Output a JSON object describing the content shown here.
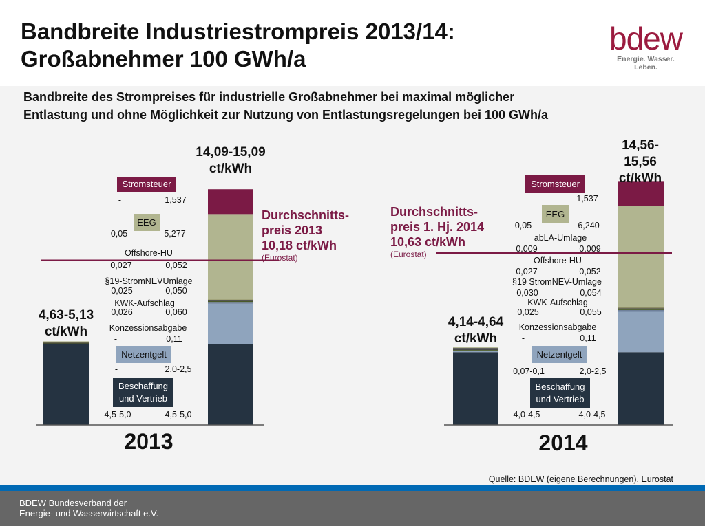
{
  "header": {
    "title_line1": "Bandbreite Industriestrompreis 2013/14:",
    "title_line2": "Großabnehmer 100 GWh/a",
    "logo_word": "bdew",
    "logo_tagline": "Energie. Wasser. Leben."
  },
  "subtitle_line1": "Bandbreite des Strompreises für industrielle Großabnehmer bei maximal möglicher",
  "subtitle_line2": "Entlastung und ohne Möglichkeit zur Nutzung von Entlastungsregelungen bei 100 GWh/a",
  "source": "Quelle: BDEW (eigene Berechnungen), Eurostat",
  "footer": {
    "line1": "BDEW Bundesverband der",
    "line2": "Energie- und Wasserwirtschaft e.V."
  },
  "colors": {
    "stromsteuer": "#7b1a45",
    "eeg": "#b1b590",
    "netzentgelt": "#8fa4bd",
    "beschaffung": "#253341",
    "small": "#4a5a2a",
    "average_line": "#7b1a45"
  },
  "chart_data": {
    "type": "bar",
    "stacked": true,
    "unit": "ct/kWh",
    "ylim": [
      0,
      16
    ],
    "grid": false,
    "panels": [
      {
        "year": "2013",
        "total_min_label": "4,63-5,13",
        "total_max_label": "14,09-15,09",
        "total_unit": "ct/kWh",
        "average": {
          "line1": "Durchschnitts-",
          "line2": "preis 2013",
          "line3": "10,18 ct/kWh",
          "source": "(Eurostat)",
          "value": 10.18
        },
        "components": [
          {
            "name": "Beschaffung und Vertrieb",
            "min": "4,5-5,0",
            "max": "4,5-5,0",
            "min_value": 5.0,
            "max_value": 5.0,
            "color": "#253341"
          },
          {
            "name": "Netzentgelt",
            "min": "-",
            "max": "2,0-2,5",
            "min_value": 0,
            "max_value": 2.5,
            "color": "#8fa4bd"
          },
          {
            "name": "Konzessionsabgabe",
            "min": "-",
            "max": "0,11",
            "min_value": 0,
            "max_value": 0.11,
            "color": "#6e7f9a"
          },
          {
            "name": "KWK-Aufschlag",
            "min": "0,026",
            "max": "0,060",
            "min_value": 0.026,
            "max_value": 0.06,
            "color": "#4a5a2a"
          },
          {
            "name": "§19-StromNEVUmlage",
            "min": "0,025",
            "max": "0,050",
            "min_value": 0.025,
            "max_value": 0.05,
            "color": "#3c3c3c"
          },
          {
            "name": "Offshore-HU",
            "min": "0,027",
            "max": "0,052",
            "min_value": 0.027,
            "max_value": 0.052,
            "color": "#8b8c5a"
          },
          {
            "name": "EEG",
            "min": "0,05",
            "max": "5,277",
            "min_value": 0.05,
            "max_value": 5.277,
            "color": "#b1b590"
          },
          {
            "name": "Stromsteuer",
            "min": "-",
            "max": "1,537",
            "min_value": 0,
            "max_value": 1.537,
            "color": "#7b1a45"
          }
        ]
      },
      {
        "year": "2014",
        "total_min_label": "4,14-4,64",
        "total_max_label": "14,56-15,56",
        "total_unit": "ct/kWh",
        "average": {
          "line1": "Durchschnitts-",
          "line2": "preis 1. Hj. 2014",
          "line3": "10,63 ct/kWh",
          "source": "(Eurostat)",
          "value": 10.63
        },
        "components": [
          {
            "name": "Beschaffung und Vertrieb",
            "min": "4,0-4,5",
            "max": "4,0-4,5",
            "min_value": 4.5,
            "max_value": 4.5,
            "color": "#253341"
          },
          {
            "name": "Netzentgelt",
            "min": "0,07-0,1",
            "max": "2,0-2,5",
            "min_value": 0.1,
            "max_value": 2.5,
            "color": "#8fa4bd"
          },
          {
            "name": "Konzessionsabgabe",
            "min": "-",
            "max": "0,11",
            "min_value": 0,
            "max_value": 0.11,
            "color": "#6e7f9a"
          },
          {
            "name": "KWK-Aufschlag",
            "min": "0,025",
            "max": "0,055",
            "min_value": 0.025,
            "max_value": 0.055,
            "color": "#4a5a2a"
          },
          {
            "name": "§19 StromNEV-Umlage",
            "min": "0,030",
            "max": "0,054",
            "min_value": 0.03,
            "max_value": 0.054,
            "color": "#3c3c3c"
          },
          {
            "name": "Offshore-HU",
            "min": "0,027",
            "max": "0,052",
            "min_value": 0.027,
            "max_value": 0.052,
            "color": "#8b8c5a"
          },
          {
            "name": "abLA-Umlage",
            "min": "0,009",
            "max": "0,009",
            "min_value": 0.009,
            "max_value": 0.009,
            "color": "#555"
          },
          {
            "name": "EEG",
            "min": "0,05",
            "max": "6,240",
            "min_value": 0.05,
            "max_value": 6.24,
            "color": "#b1b590"
          },
          {
            "name": "Stromsteuer",
            "min": "-",
            "max": "1,537",
            "min_value": 0,
            "max_value": 1.537,
            "color": "#7b1a45"
          }
        ]
      }
    ]
  }
}
